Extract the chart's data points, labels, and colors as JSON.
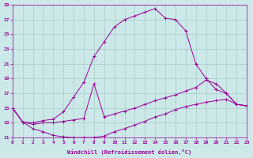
{
  "xlabel": "Windchill (Refroidissement éolien,°C)",
  "bg_color": "#cce8e8",
  "line_color": "#990099",
  "grid_color": "#aacccc",
  "xlim": [
    0,
    23
  ],
  "ylim": [
    11,
    29
  ],
  "xticks": [
    0,
    1,
    2,
    3,
    4,
    5,
    6,
    7,
    8,
    9,
    10,
    11,
    12,
    13,
    14,
    15,
    16,
    17,
    18,
    19,
    20,
    21,
    22,
    23
  ],
  "yticks": [
    11,
    13,
    15,
    17,
    19,
    21,
    23,
    25,
    27,
    29
  ],
  "line1_x": [
    0,
    1,
    2,
    3,
    4,
    5,
    6,
    7,
    8,
    9,
    10,
    11,
    12,
    13,
    14,
    15,
    16,
    17,
    18,
    19,
    20,
    21,
    22,
    23
  ],
  "line1_y": [
    15.0,
    13.1,
    13.0,
    13.3,
    13.5,
    14.5,
    16.5,
    18.5,
    22.0,
    24.0,
    26.0,
    27.0,
    27.5,
    28.0,
    28.5,
    27.2,
    27.0,
    25.5,
    21.0,
    19.0,
    17.5,
    17.0,
    15.5,
    15.3
  ],
  "line2_x": [
    0,
    1,
    2,
    3,
    4,
    5,
    6,
    7,
    8,
    9,
    10,
    11,
    12,
    13,
    14,
    15,
    16,
    17,
    18,
    19,
    20,
    21,
    22,
    23
  ],
  "line2_y": [
    15.0,
    13.1,
    12.8,
    13.0,
    13.0,
    13.2,
    13.4,
    13.6,
    18.3,
    13.8,
    14.2,
    14.6,
    15.0,
    15.5,
    16.0,
    16.4,
    16.8,
    17.3,
    17.8,
    18.8,
    18.3,
    17.0,
    15.5,
    15.3
  ],
  "line3_x": [
    0,
    1,
    2,
    3,
    4,
    5,
    6,
    7,
    8,
    9,
    10,
    11,
    12,
    13,
    14,
    15,
    16,
    17,
    18,
    19,
    20,
    21,
    22,
    23
  ],
  "line3_y": [
    15.0,
    13.1,
    12.2,
    11.8,
    11.3,
    11.1,
    11.0,
    11.0,
    11.0,
    11.2,
    11.8,
    12.2,
    12.7,
    13.2,
    13.8,
    14.2,
    14.8,
    15.2,
    15.5,
    15.8,
    16.0,
    16.2,
    15.5,
    15.3
  ]
}
